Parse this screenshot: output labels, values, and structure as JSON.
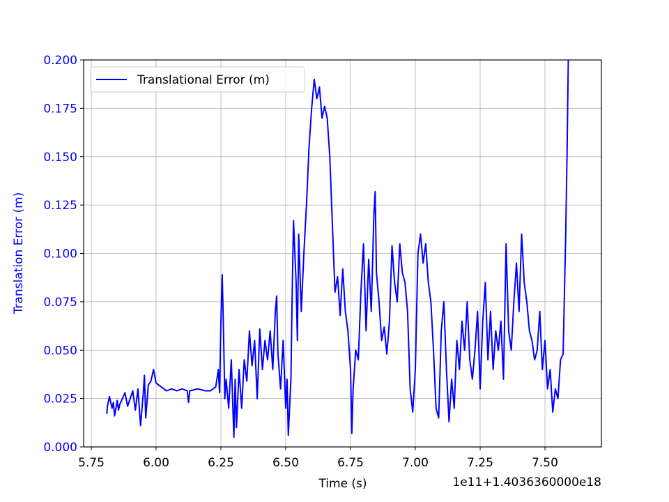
{
  "chart_data": {
    "type": "line",
    "xlabel": "Time (s)",
    "ylabel": "Translation Error (m)",
    "x_offset_label": "1e11+1.4036360000e18",
    "xlim": [
      5.7204,
      7.7177
    ],
    "ylim": [
      0,
      0.2
    ],
    "xticks": [
      5.75,
      {
        "value": 6,
        "label": "6.00"
      },
      6.25,
      {
        "value": 6.5,
        "label": "6.50"
      },
      6.75,
      {
        "value": 7,
        "label": "7.00"
      },
      7.25,
      {
        "value": 7.5,
        "label": "7.50"
      }
    ],
    "yticks": [
      {
        "value": 0,
        "label": "0.000"
      },
      0.025,
      {
        "value": 0.05,
        "label": "0.050"
      },
      0.075,
      {
        "value": 0.1,
        "label": "0.100"
      },
      0.125,
      {
        "value": 0.15,
        "label": "0.150"
      },
      0.175,
      {
        "value": 0.2,
        "label": "0.200"
      }
    ],
    "grid": true,
    "legend_position": "upper-left",
    "axis_label_color": "#0000ff",
    "x": [
      5.81,
      5.812,
      5.82,
      5.83,
      5.835,
      5.84,
      5.85,
      5.855,
      5.86,
      5.87,
      5.88,
      5.89,
      5.9,
      5.91,
      5.92,
      5.93,
      5.94,
      5.95,
      5.955,
      5.96,
      5.97,
      5.98,
      5.99,
      6.0,
      6.02,
      6.04,
      6.06,
      6.08,
      6.1,
      6.12,
      6.125,
      6.13,
      6.16,
      6.19,
      6.21,
      6.23,
      6.24,
      6.245,
      6.25,
      6.255,
      6.26,
      6.265,
      6.27,
      6.28,
      6.29,
      6.3,
      6.305,
      6.31,
      6.32,
      6.33,
      6.34,
      6.35,
      6.36,
      6.37,
      6.38,
      6.39,
      6.4,
      6.41,
      6.42,
      6.43,
      6.44,
      6.45,
      6.46,
      6.465,
      6.47,
      6.48,
      6.49,
      6.5,
      6.505,
      6.51,
      6.52,
      6.525,
      6.53,
      6.54,
      6.545,
      6.55,
      6.56,
      6.57,
      6.58,
      6.59,
      6.6,
      6.61,
      6.62,
      6.63,
      6.64,
      6.65,
      6.66,
      6.67,
      6.68,
      6.69,
      6.7,
      6.71,
      6.72,
      6.73,
      6.74,
      6.75,
      6.755,
      6.76,
      6.77,
      6.78,
      6.79,
      6.8,
      6.81,
      6.82,
      6.83,
      6.84,
      6.845,
      6.85,
      6.86,
      6.87,
      6.88,
      6.89,
      6.9,
      6.91,
      6.92,
      6.93,
      6.94,
      6.95,
      6.96,
      6.97,
      6.98,
      6.99,
      7.0,
      7.01,
      7.02,
      7.03,
      7.04,
      7.05,
      7.06,
      7.07,
      7.08,
      7.09,
      7.1,
      7.11,
      7.12,
      7.13,
      7.14,
      7.15,
      7.16,
      7.17,
      7.18,
      7.19,
      7.2,
      7.21,
      7.22,
      7.23,
      7.24,
      7.25,
      7.26,
      7.27,
      7.28,
      7.29,
      7.3,
      7.31,
      7.32,
      7.33,
      7.34,
      7.35,
      7.36,
      7.37,
      7.38,
      7.39,
      7.4,
      7.41,
      7.42,
      7.43,
      7.44,
      7.45,
      7.46,
      7.47,
      7.48,
      7.49,
      7.5,
      7.51,
      7.52,
      7.53,
      7.54,
      7.55,
      7.56,
      7.57,
      7.58,
      7.585,
      7.59
    ],
    "series": [
      {
        "name": "Translational Error (m)",
        "color": "#0000ff",
        "values": [
          0.017,
          0.021,
          0.026,
          0.02,
          0.023,
          0.016,
          0.024,
          0.019,
          0.022,
          0.025,
          0.028,
          0.021,
          0.025,
          0.029,
          0.019,
          0.03,
          0.011,
          0.027,
          0.037,
          0.015,
          0.032,
          0.034,
          0.04,
          0.033,
          0.031,
          0.029,
          0.03,
          0.029,
          0.03,
          0.029,
          0.023,
          0.029,
          0.03,
          0.029,
          0.029,
          0.031,
          0.04,
          0.028,
          0.065,
          0.089,
          0.06,
          0.025,
          0.035,
          0.02,
          0.045,
          0.005,
          0.035,
          0.01,
          0.04,
          0.02,
          0.045,
          0.034,
          0.06,
          0.042,
          0.055,
          0.025,
          0.061,
          0.04,
          0.055,
          0.045,
          0.06,
          0.04,
          0.07,
          0.078,
          0.048,
          0.03,
          0.055,
          0.02,
          0.035,
          0.006,
          0.035,
          0.08,
          0.117,
          0.085,
          0.055,
          0.11,
          0.07,
          0.1,
          0.125,
          0.155,
          0.175,
          0.19,
          0.18,
          0.186,
          0.17,
          0.176,
          0.17,
          0.15,
          0.115,
          0.08,
          0.088,
          0.068,
          0.092,
          0.07,
          0.06,
          0.04,
          0.007,
          0.03,
          0.05,
          0.045,
          0.08,
          0.105,
          0.06,
          0.097,
          0.07,
          0.12,
          0.132,
          0.09,
          0.075,
          0.055,
          0.062,
          0.048,
          0.065,
          0.104,
          0.085,
          0.075,
          0.105,
          0.09,
          0.085,
          0.07,
          0.03,
          0.018,
          0.04,
          0.1,
          0.11,
          0.095,
          0.105,
          0.085,
          0.075,
          0.05,
          0.02,
          0.015,
          0.06,
          0.075,
          0.04,
          0.013,
          0.035,
          0.02,
          0.055,
          0.04,
          0.065,
          0.05,
          0.075,
          0.045,
          0.035,
          0.05,
          0.07,
          0.03,
          0.065,
          0.085,
          0.045,
          0.07,
          0.04,
          0.06,
          0.05,
          0.065,
          0.035,
          0.105,
          0.06,
          0.05,
          0.075,
          0.095,
          0.07,
          0.11,
          0.085,
          0.075,
          0.06,
          0.055,
          0.045,
          0.05,
          0.07,
          0.04,
          0.055,
          0.03,
          0.04,
          0.018,
          0.03,
          0.025,
          0.045,
          0.048,
          0.11,
          0.15,
          0.2
        ]
      }
    ]
  }
}
